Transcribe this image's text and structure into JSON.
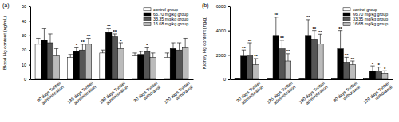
{
  "chart_data": [
    {
      "type": "bar",
      "title": "(a)",
      "y_label": "Blood Hg content (ng/mL)",
      "categories": [
        "90 days Tonbel administration",
        "135 days Tonbel administration",
        "180 days Tonbel administration",
        "30 days Tonbel withdrawal",
        "120 days Tonbel withdrawal"
      ],
      "series": [
        {
          "name": "control group",
          "color": "#ffffff",
          "values": [
            24,
            15,
            18,
            16,
            15
          ],
          "errors": [
            4,
            2,
            2,
            2,
            3
          ],
          "significance": [
            null,
            null,
            null,
            null,
            null
          ]
        },
        {
          "name": "66.70 mg/kg group",
          "color": "#000000",
          "values": [
            27,
            19,
            32,
            17,
            21
          ],
          "errors": [
            8,
            3,
            3,
            2,
            4
          ],
          "significance": [
            null,
            "*",
            "**",
            null,
            null
          ]
        },
        {
          "name": "33.35 mg/kg group",
          "color": "#555555",
          "values": [
            25,
            20,
            29,
            19,
            20
          ],
          "errors": [
            6,
            4,
            2,
            3,
            5
          ],
          "significance": [
            null,
            "**",
            "**",
            "*",
            null
          ]
        },
        {
          "name": "16.68 mg/kg group",
          "color": "#bbbbbb",
          "values": [
            16,
            24,
            21,
            15,
            22
          ],
          "errors": [
            5,
            4,
            4,
            3,
            6
          ],
          "significance": [
            null,
            "**",
            "*",
            null,
            null
          ]
        }
      ],
      "ylim": [
        0,
        50
      ],
      "yticks": [
        0,
        10,
        20,
        30,
        40,
        50
      ],
      "legend": "upper right"
    },
    {
      "type": "bar",
      "title": "(b)",
      "y_label": "Kidney Hg content (ng/g)",
      "categories": [
        "90 days Tonbel administration",
        "135 days Tonbel administration",
        "180 days Tonbel administration",
        "30 days Tonbel withdrawal",
        "120 days Tonbel withdrawal"
      ],
      "series": [
        {
          "name": "control group",
          "color": "#ffffff",
          "values": [
            30,
            50,
            50,
            50,
            50
          ],
          "errors": [
            10,
            10,
            10,
            10,
            10
          ],
          "significance": [
            null,
            null,
            null,
            null,
            null
          ]
        },
        {
          "name": "66.70 mg/kg group",
          "color": "#000000",
          "values": [
            1900,
            3600,
            3600,
            2500,
            700
          ],
          "errors": [
            500,
            1500,
            1300,
            1500,
            400
          ],
          "significance": [
            "**",
            "**",
            "**",
            "**",
            "*"
          ]
        },
        {
          "name": "33.35 mg/kg group",
          "color": "#555555",
          "values": [
            2000,
            2500,
            3300,
            1400,
            700
          ],
          "errors": [
            1000,
            700,
            700,
            400,
            300
          ],
          "significance": [
            "**",
            "**",
            "**",
            "**",
            "*"
          ]
        },
        {
          "name": "16.68 mg/kg group",
          "color": "#bbbbbb",
          "values": [
            1200,
            1500,
            2900,
            1200,
            500
          ],
          "errors": [
            500,
            600,
            800,
            300,
            200
          ],
          "significance": [
            "**",
            "**",
            "**",
            "**",
            "*"
          ]
        }
      ],
      "ylim": [
        0,
        6000
      ],
      "yticks": [
        0,
        2000,
        4000,
        6000
      ],
      "legend": "upper right"
    }
  ]
}
